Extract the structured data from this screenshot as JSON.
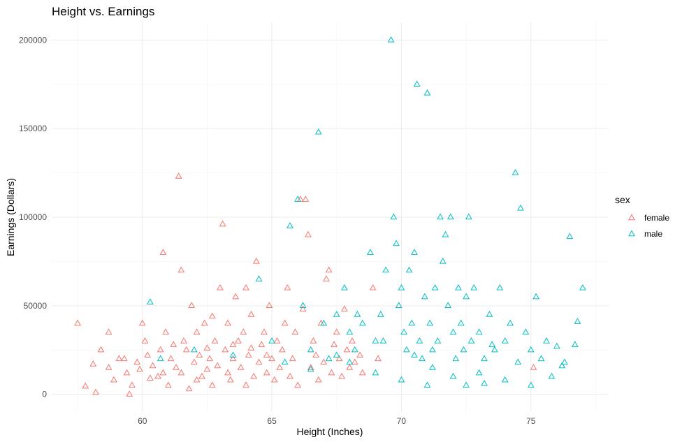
{
  "chart_data": {
    "type": "scatter",
    "title": "Height vs. Earnings",
    "xlabel": "Height (Inches)",
    "ylabel": "Earnings (Dollars)",
    "xlim": [
      56.5,
      78.0
    ],
    "ylim": [
      -10000,
      210000
    ],
    "x_ticks": [
      {
        "value": 60,
        "label": "60"
      },
      {
        "value": 65,
        "label": "65"
      },
      {
        "value": 70,
        "label": "70"
      },
      {
        "value": 75,
        "label": "75"
      }
    ],
    "y_ticks": [
      {
        "value": 0,
        "label": "0"
      },
      {
        "value": 50000,
        "label": "50000"
      },
      {
        "value": 100000,
        "label": "100000"
      },
      {
        "value": 150000,
        "label": "150000"
      },
      {
        "value": 200000,
        "label": "200000"
      }
    ],
    "grid": true,
    "legend": {
      "title": "sex",
      "position": "right"
    },
    "series": [
      {
        "name": "female",
        "color": "#F8766D",
        "marker": "triangle-open",
        "points": [
          [
            57.5,
            40000
          ],
          [
            57.8,
            4500
          ],
          [
            58.1,
            17000
          ],
          [
            58.2,
            1000
          ],
          [
            58.4,
            25000
          ],
          [
            58.7,
            35000
          ],
          [
            58.7,
            15000
          ],
          [
            58.9,
            8000
          ],
          [
            59.1,
            20000
          ],
          [
            59.3,
            20000
          ],
          [
            59.4,
            12000
          ],
          [
            59.5,
            0
          ],
          [
            59.6,
            5000
          ],
          [
            59.8,
            18000
          ],
          [
            59.9,
            14000
          ],
          [
            60.0,
            40000
          ],
          [
            60.1,
            30000
          ],
          [
            60.2,
            22000
          ],
          [
            60.3,
            9000
          ],
          [
            60.4,
            16000
          ],
          [
            60.6,
            10000
          ],
          [
            60.7,
            25000
          ],
          [
            60.8,
            80000
          ],
          [
            60.8,
            12000
          ],
          [
            60.9,
            35000
          ],
          [
            61.0,
            5000
          ],
          [
            61.1,
            20000
          ],
          [
            61.2,
            28000
          ],
          [
            61.3,
            15000
          ],
          [
            61.4,
            123000
          ],
          [
            61.5,
            70000
          ],
          [
            61.5,
            12000
          ],
          [
            61.6,
            30000
          ],
          [
            61.7,
            25000
          ],
          [
            61.8,
            3000
          ],
          [
            61.9,
            50000
          ],
          [
            62.0,
            18000
          ],
          [
            62.1,
            8000
          ],
          [
            62.1,
            35000
          ],
          [
            62.2,
            22000
          ],
          [
            62.3,
            10000
          ],
          [
            62.4,
            40000
          ],
          [
            62.5,
            14000
          ],
          [
            62.6,
            20000
          ],
          [
            62.7,
            44000
          ],
          [
            62.7,
            5000
          ],
          [
            62.8,
            30000
          ],
          [
            62.9,
            16000
          ],
          [
            63.0,
            60000
          ],
          [
            63.1,
            96000
          ],
          [
            63.2,
            25000
          ],
          [
            63.3,
            12000
          ],
          [
            63.3,
            40000
          ],
          [
            63.4,
            8000
          ],
          [
            63.5,
            20000
          ],
          [
            63.6,
            55000
          ],
          [
            63.7,
            30000
          ],
          [
            63.8,
            15000
          ],
          [
            63.9,
            35000
          ],
          [
            64.0,
            60000
          ],
          [
            64.0,
            5000
          ],
          [
            64.1,
            22000
          ],
          [
            64.2,
            45000
          ],
          [
            64.3,
            10000
          ],
          [
            64.4,
            75000
          ],
          [
            64.5,
            18000
          ],
          [
            64.6,
            28000
          ],
          [
            64.7,
            35000
          ],
          [
            64.8,
            12000
          ],
          [
            64.9,
            50000
          ],
          [
            65.0,
            20000
          ],
          [
            65.1,
            8000
          ],
          [
            65.2,
            30000
          ],
          [
            65.3,
            15000
          ],
          [
            65.4,
            25000
          ],
          [
            65.5,
            40000
          ],
          [
            65.6,
            60000
          ],
          [
            65.7,
            10000
          ],
          [
            65.8,
            20000
          ],
          [
            65.9,
            35000
          ],
          [
            66.0,
            5000
          ],
          [
            66.1,
            110000
          ],
          [
            66.2,
            48000
          ],
          [
            66.3,
            110000
          ],
          [
            66.4,
            90000
          ],
          [
            66.5,
            15000
          ],
          [
            66.6,
            30000
          ],
          [
            66.7,
            22000
          ],
          [
            66.8,
            8000
          ],
          [
            66.9,
            40000
          ],
          [
            67.0,
            18000
          ],
          [
            67.1,
            65000
          ],
          [
            67.2,
            70000
          ],
          [
            67.3,
            12000
          ],
          [
            67.4,
            28000
          ],
          [
            67.5,
            35000
          ],
          [
            67.6,
            20000
          ],
          [
            67.7,
            10000
          ],
          [
            67.8,
            48000
          ],
          [
            67.9,
            25000
          ],
          [
            68.0,
            15000
          ],
          [
            68.1,
            30000
          ],
          [
            68.2,
            18000
          ],
          [
            68.4,
            22000
          ],
          [
            68.5,
            12000
          ],
          [
            68.9,
            60000
          ],
          [
            69.1,
            20000
          ],
          [
            75.1,
            15000
          ],
          [
            62.5,
            26000
          ],
          [
            63.5,
            28000
          ],
          [
            64.2,
            26000
          ],
          [
            64.8,
            22000
          ]
        ]
      },
      {
        "name": "male",
        "color": "#00BFC4",
        "marker": "triangle-open",
        "points": [
          [
            60.3,
            52000
          ],
          [
            60.7,
            20000
          ],
          [
            62.0,
            25000
          ],
          [
            63.5,
            22000
          ],
          [
            64.5,
            65000
          ],
          [
            65.0,
            30000
          ],
          [
            65.5,
            18000
          ],
          [
            65.7,
            95000
          ],
          [
            66.0,
            110000
          ],
          [
            66.2,
            50000
          ],
          [
            66.5,
            25000
          ],
          [
            66.8,
            148000
          ],
          [
            67.0,
            40000
          ],
          [
            67.2,
            20000
          ],
          [
            67.5,
            45000
          ],
          [
            67.8,
            60000
          ],
          [
            68.0,
            35000
          ],
          [
            68.2,
            25000
          ],
          [
            68.5,
            40000
          ],
          [
            68.8,
            80000
          ],
          [
            69.0,
            30000
          ],
          [
            69.2,
            45000
          ],
          [
            69.4,
            70000
          ],
          [
            69.6,
            200000
          ],
          [
            69.7,
            100000
          ],
          [
            69.8,
            85000
          ],
          [
            69.9,
            50000
          ],
          [
            70.0,
            60000
          ],
          [
            70.1,
            35000
          ],
          [
            70.2,
            25000
          ],
          [
            70.3,
            70000
          ],
          [
            70.4,
            40000
          ],
          [
            70.5,
            80000
          ],
          [
            70.6,
            175000
          ],
          [
            70.7,
            30000
          ],
          [
            70.8,
            20000
          ],
          [
            70.9,
            55000
          ],
          [
            71.0,
            170000
          ],
          [
            71.1,
            40000
          ],
          [
            71.2,
            25000
          ],
          [
            71.3,
            60000
          ],
          [
            71.4,
            30000
          ],
          [
            71.5,
            100000
          ],
          [
            71.6,
            75000
          ],
          [
            71.7,
            90000
          ],
          [
            71.8,
            50000
          ],
          [
            71.9,
            100000
          ],
          [
            72.0,
            35000
          ],
          [
            72.1,
            20000
          ],
          [
            72.2,
            60000
          ],
          [
            72.3,
            40000
          ],
          [
            72.4,
            25000
          ],
          [
            72.5,
            55000
          ],
          [
            72.6,
            100000
          ],
          [
            72.7,
            30000
          ],
          [
            72.8,
            60000
          ],
          [
            73.0,
            35000
          ],
          [
            73.2,
            20000
          ],
          [
            73.4,
            45000
          ],
          [
            73.6,
            25000
          ],
          [
            73.8,
            60000
          ],
          [
            74.0,
            30000
          ],
          [
            74.2,
            40000
          ],
          [
            74.4,
            125000
          ],
          [
            74.6,
            105000
          ],
          [
            74.8,
            35000
          ],
          [
            75.0,
            25000
          ],
          [
            75.2,
            55000
          ],
          [
            75.4,
            20000
          ],
          [
            75.6,
            30000
          ],
          [
            75.8,
            10000
          ],
          [
            76.0,
            27000
          ],
          [
            76.3,
            18000
          ],
          [
            76.5,
            89000
          ],
          [
            76.7,
            28000
          ],
          [
            76.8,
            41000
          ],
          [
            77.0,
            60000
          ],
          [
            68.3,
            45000
          ],
          [
            69.3,
            30000
          ],
          [
            70.5,
            22000
          ],
          [
            71.2,
            15000
          ],
          [
            72.0,
            10000
          ],
          [
            73.0,
            12000
          ],
          [
            73.5,
            28000
          ],
          [
            74.5,
            18000
          ],
          [
            69.0,
            12000
          ],
          [
            70.0,
            8000
          ],
          [
            71.0,
            5000
          ],
          [
            72.5,
            5000
          ],
          [
            73.2,
            6000
          ],
          [
            74.0,
            8000
          ],
          [
            75.0,
            5000
          ],
          [
            76.2,
            16000
          ],
          [
            68.0,
            18000
          ],
          [
            67.5,
            22000
          ],
          [
            66.5,
            14000
          ]
        ]
      }
    ]
  }
}
